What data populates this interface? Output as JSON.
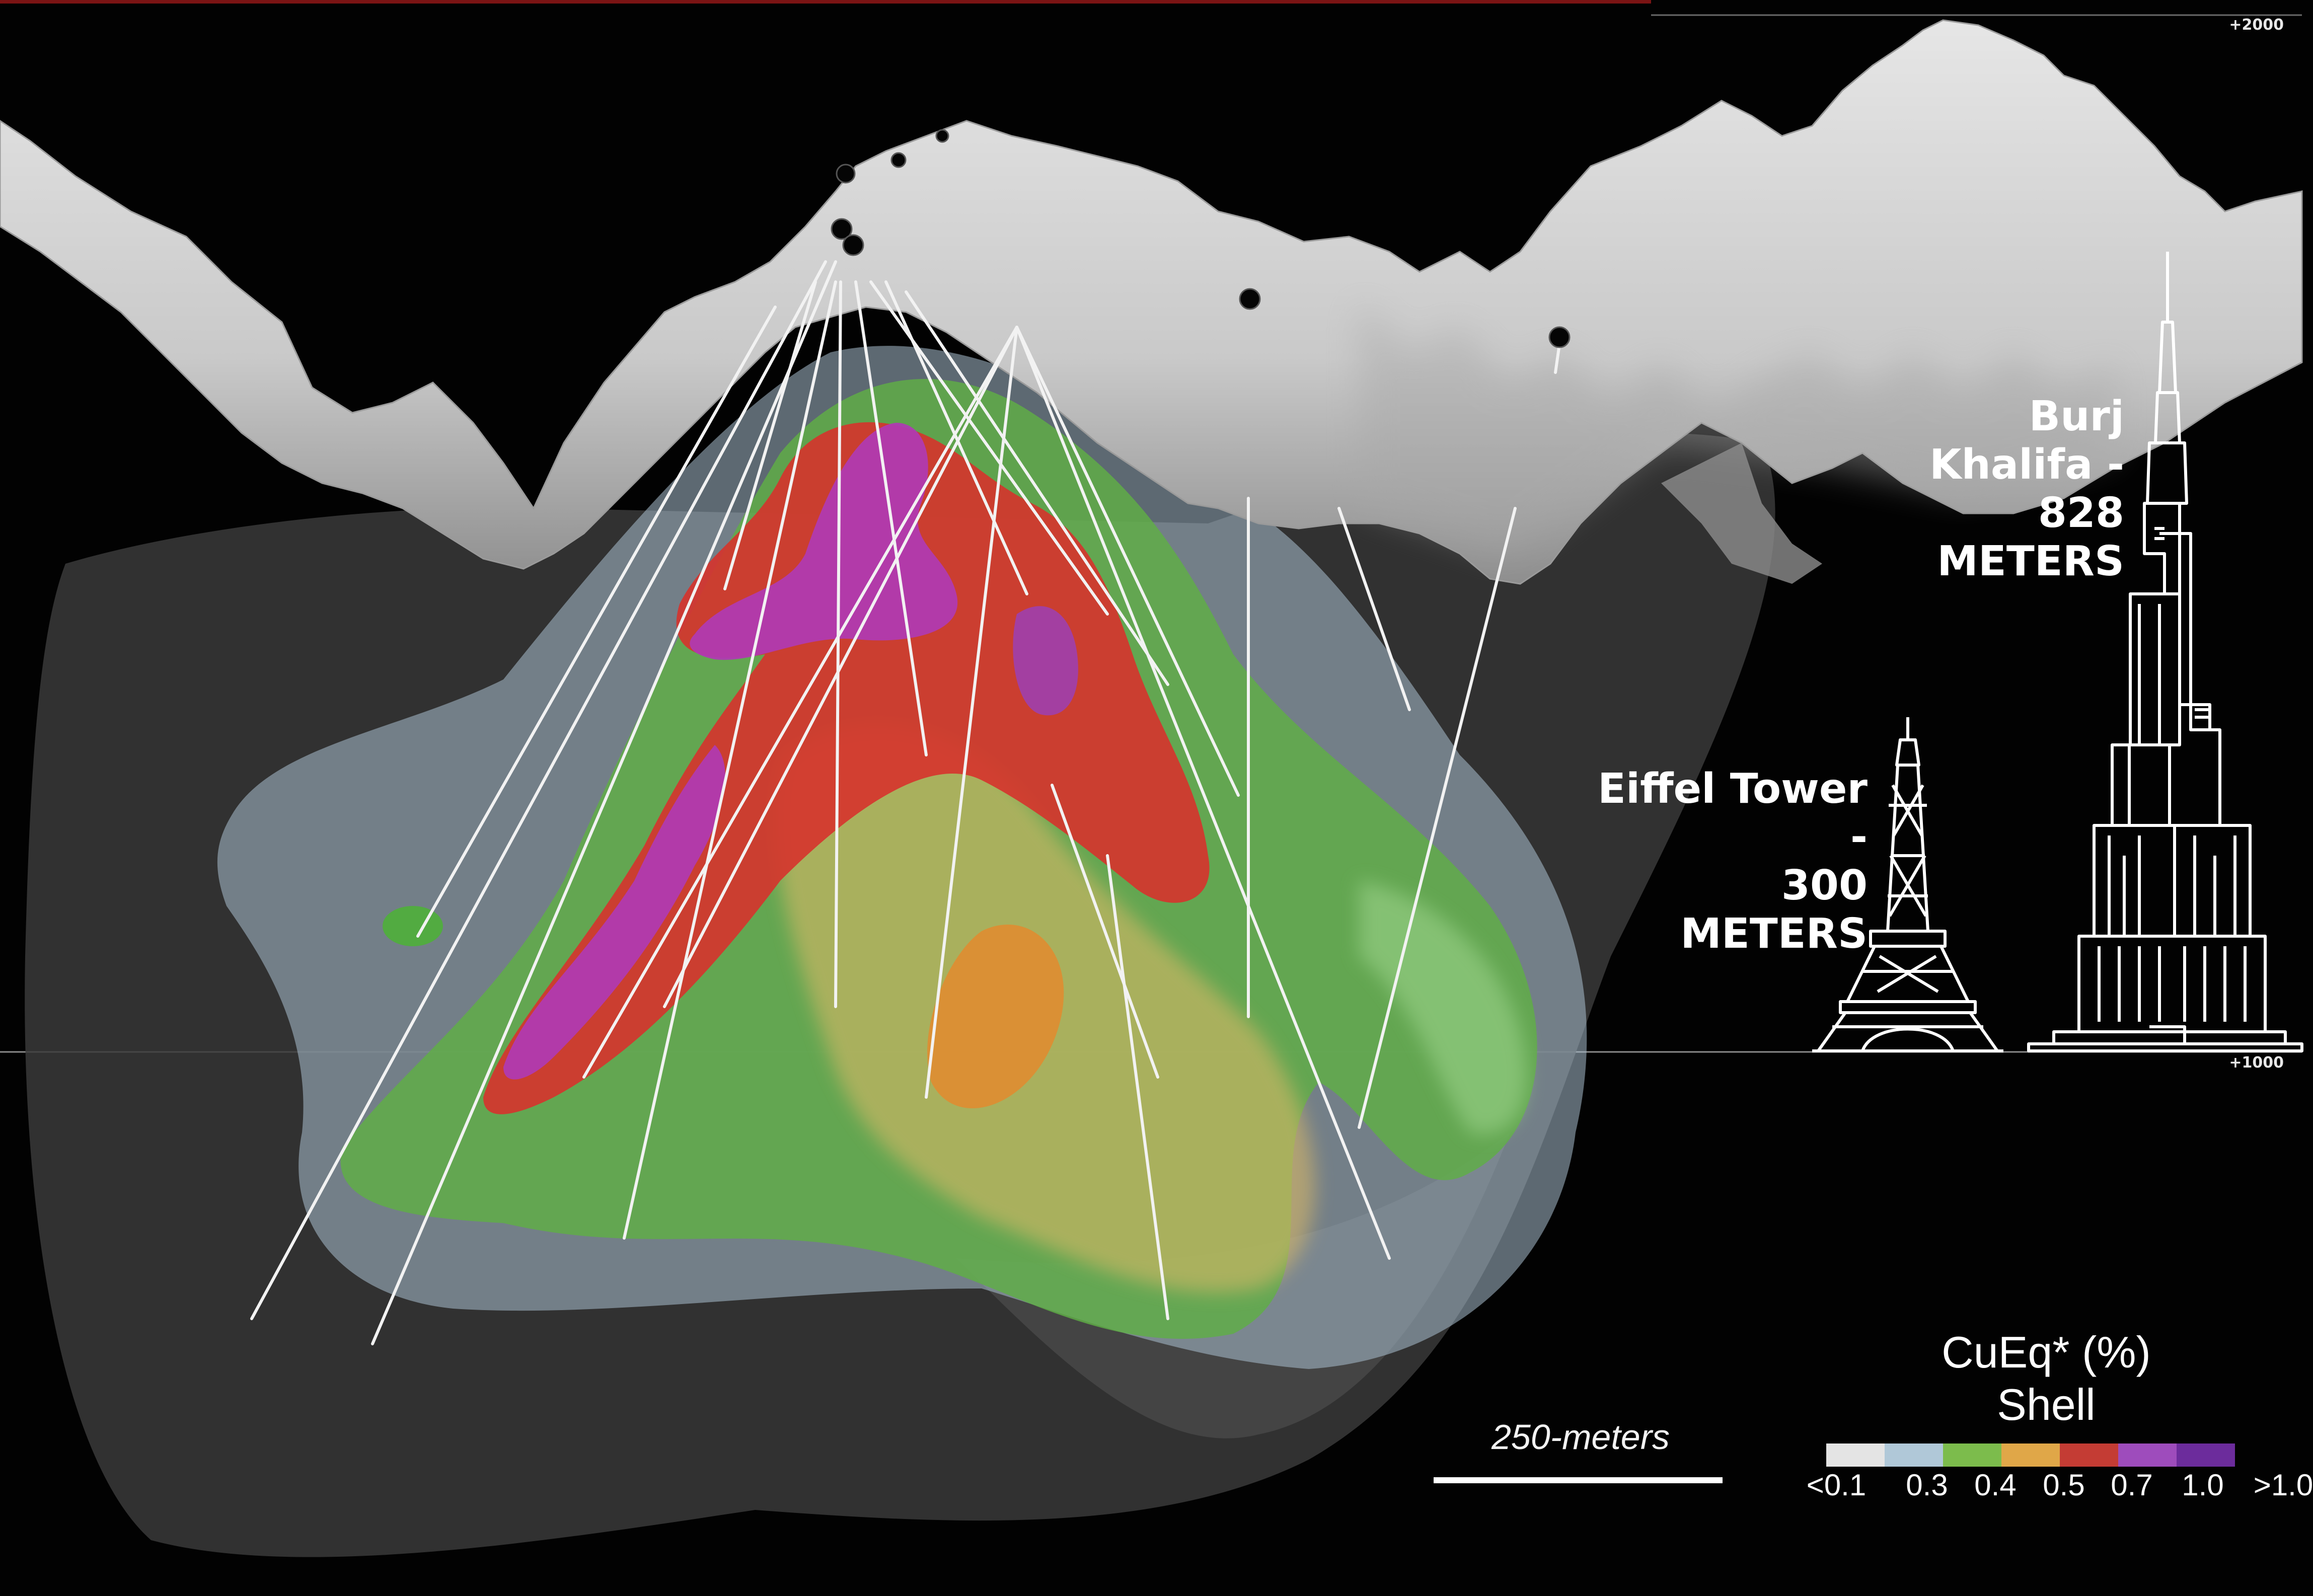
{
  "elevation_labels": {
    "top": "+2000",
    "bottom": "+1000"
  },
  "buildings": {
    "burj": {
      "line1": "Burj Khalifa -",
      "line2": "828 METERS"
    },
    "eiffel": {
      "line1": "Eiffel Tower -",
      "line2": "300 METERS"
    }
  },
  "scale_bar": {
    "label": "250-meters"
  },
  "legend": {
    "title_line1": "CuEq* (%)",
    "title_line2": "Shell",
    "classes": [
      {
        "label": "<0.1",
        "color": "#e4e4e4"
      },
      {
        "label": "0.3",
        "color": "#b0c8d8"
      },
      {
        "label": "0.4",
        "color": "#7cbc4c"
      },
      {
        "label": "0.5",
        "color": "#e0a748"
      },
      {
        "label": "0.7",
        "color": "#c43c34"
      },
      {
        "label": "1.0",
        "color": "#9e4cbc"
      },
      {
        "label": ">1.0",
        "color": "#6c2c9c"
      }
    ]
  }
}
